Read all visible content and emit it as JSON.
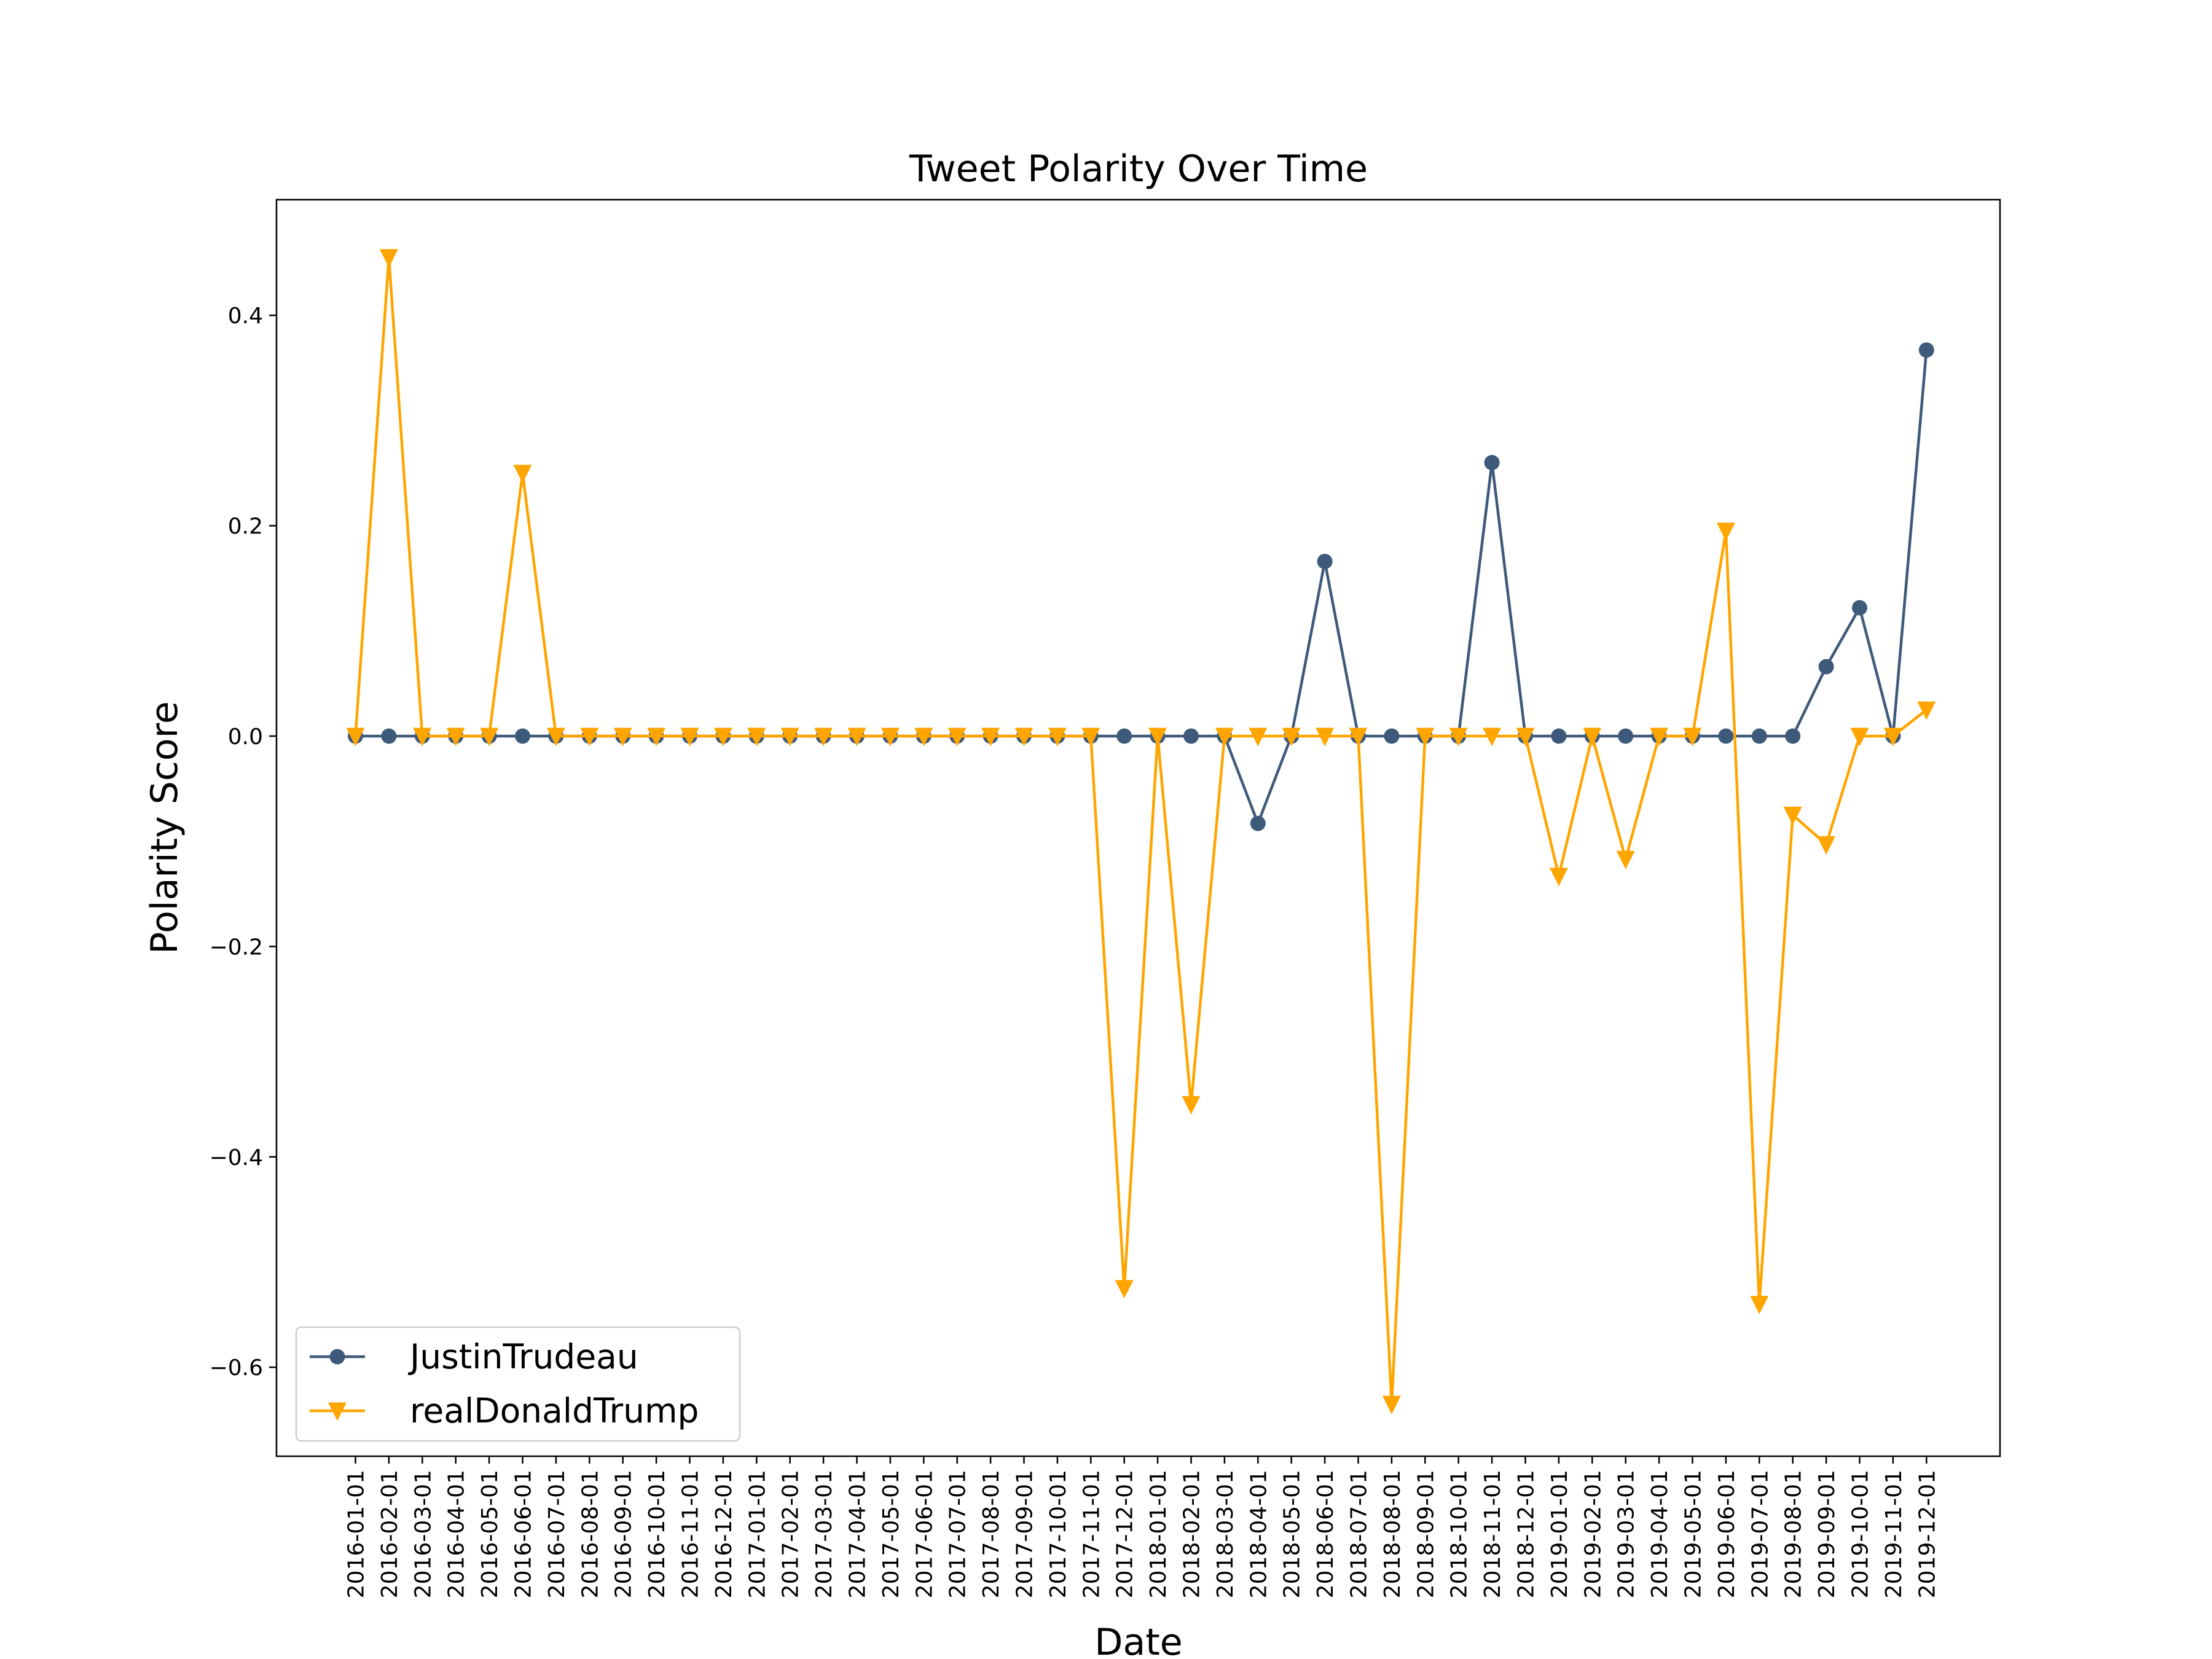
{
  "chart_data": {
    "type": "line",
    "title": "Tweet Polarity Over Time",
    "xlabel": "Date",
    "ylabel": "Polarity Score",
    "ylim": [
      -0.69,
      0.51
    ],
    "yticks": [
      0.4,
      0.2,
      0.0,
      -0.2,
      -0.4,
      -0.6
    ],
    "ytick_labels": [
      "0.4",
      "0.2",
      "0.0",
      "−0.2",
      "−0.4",
      "−0.6"
    ],
    "grid": false,
    "legend_position": "lower-left",
    "categories": [
      "2016-01-01",
      "2016-02-01",
      "2016-03-01",
      "2016-04-01",
      "2016-05-01",
      "2016-06-01",
      "2016-07-01",
      "2016-08-01",
      "2016-09-01",
      "2016-10-01",
      "2016-11-01",
      "2016-12-01",
      "2017-01-01",
      "2017-02-01",
      "2017-03-01",
      "2017-04-01",
      "2017-05-01",
      "2017-06-01",
      "2017-07-01",
      "2017-08-01",
      "2017-09-01",
      "2017-10-01",
      "2017-11-01",
      "2017-12-01",
      "2018-01-01",
      "2018-02-01",
      "2018-03-01",
      "2018-04-01",
      "2018-05-01",
      "2018-06-01",
      "2018-07-01",
      "2018-08-01",
      "2018-09-01",
      "2018-10-01",
      "2018-11-01",
      "2018-12-01",
      "2019-01-01",
      "2019-02-01",
      "2019-03-01",
      "2019-04-01",
      "2019-05-01",
      "2019-06-01",
      "2019-07-01",
      "2019-08-01",
      "2019-09-01",
      "2019-10-01",
      "2019-11-01",
      "2019-12-01"
    ],
    "series": [
      {
        "name": "JustinTrudeau",
        "color": "#3e5a7a",
        "marker": "circle",
        "values": [
          0,
          0,
          0,
          0,
          0,
          0,
          0,
          0,
          0,
          0,
          0,
          0,
          0,
          0,
          0,
          0,
          0,
          0,
          0,
          0,
          0,
          0,
          0,
          0,
          0,
          0,
          0,
          -0.083,
          0,
          0.166,
          0,
          0,
          0,
          0,
          0.26,
          0,
          0,
          0,
          0,
          0,
          0,
          0,
          0,
          0,
          0.066,
          0.122,
          0,
          0.367
        ]
      },
      {
        "name": "realDonaldTrump",
        "color": "#ffa500",
        "marker": "triangle-down",
        "values": [
          0,
          0.455,
          0,
          0,
          0,
          0.25,
          0,
          0,
          0,
          0,
          0,
          0,
          0,
          0,
          0,
          0,
          0,
          0,
          0,
          0,
          0,
          0,
          0,
          -0.525,
          0,
          -0.35,
          0,
          0,
          0,
          0,
          0,
          -0.635,
          0,
          0,
          0,
          0,
          -0.133,
          0,
          -0.117,
          0,
          0,
          0.195,
          -0.54,
          -0.075,
          -0.103,
          0,
          0,
          0.025
        ]
      }
    ]
  }
}
